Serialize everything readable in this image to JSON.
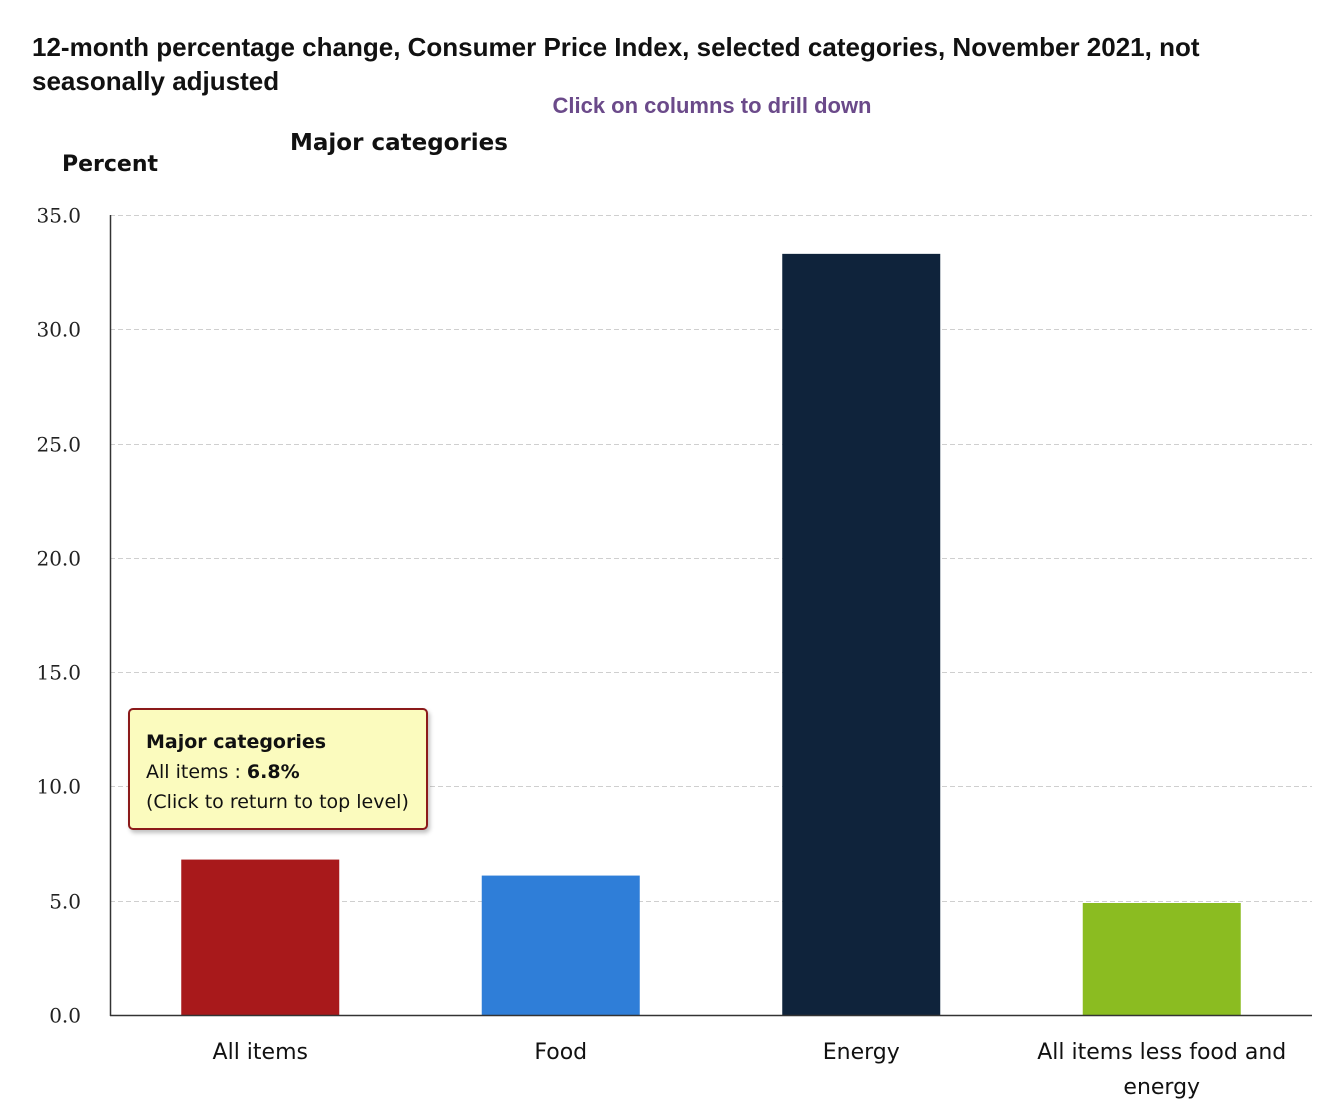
{
  "chart_data": {
    "type": "bar",
    "title": "12-month percentage change, Consumer Price Index, selected categories, November 2021, not seasonally adjusted",
    "subtitle": "Major categories",
    "instruction": "Click on columns to drill down",
    "ylabel": "Percent",
    "xlabel": "",
    "categories": [
      "All items",
      "Food",
      "Energy",
      "All items less food and energy"
    ],
    "values": [
      6.8,
      6.1,
      33.3,
      4.9
    ],
    "colors": [
      "#a8191b",
      "#2f7ed8",
      "#0f233b",
      "#8bbc21"
    ],
    "ylim": [
      0,
      35
    ],
    "yticks": [
      "0.0",
      "5.0",
      "10.0",
      "15.0",
      "20.0",
      "25.0",
      "30.0",
      "35.0"
    ],
    "grid": true,
    "legend": "none"
  },
  "tooltip": {
    "title": "Major categories",
    "label": "All items",
    "separator": " : ",
    "value": "6.8%",
    "note": "(Click to return to top level)"
  }
}
